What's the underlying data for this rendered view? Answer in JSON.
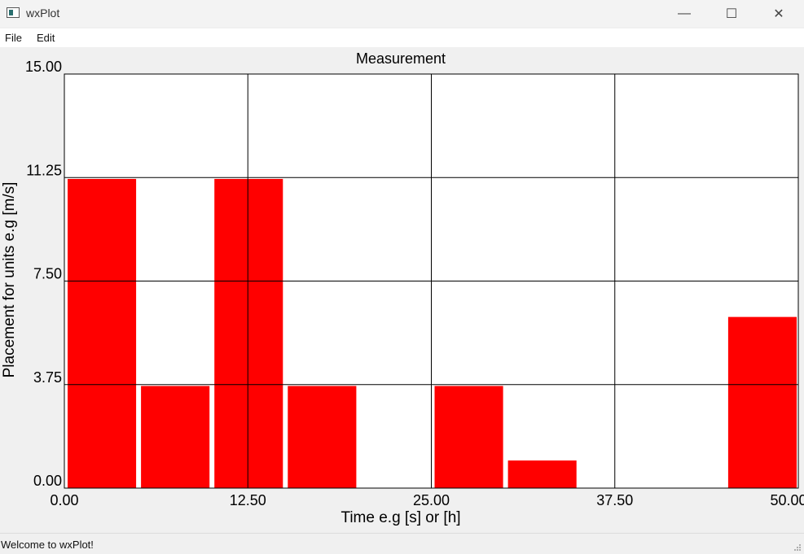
{
  "window": {
    "title": "wxPlot",
    "minimize_glyph": "—",
    "maximize_glyph": "☐",
    "close_glyph": "✕"
  },
  "menu": {
    "items": [
      {
        "label": "File"
      },
      {
        "label": "Edit"
      }
    ]
  },
  "status": {
    "text": "Welcome to wxPlot!"
  },
  "colors": {
    "bar": "#ff0000",
    "grid": "#000000"
  },
  "chart_data": {
    "type": "bar",
    "title": "Measurement",
    "xlabel": "Time e.g [s] or [h]",
    "ylabel": "Placement for units e.g [m/s]",
    "xlim": [
      0,
      50
    ],
    "ylim": [
      0,
      15
    ],
    "xticks": [
      "0.00",
      "12.50",
      "25.00",
      "37.50",
      "50.00"
    ],
    "yticks": [
      "0.00",
      "3.75",
      "7.50",
      "11.25",
      "15.00"
    ],
    "grid": true,
    "bar_width": 5,
    "bars": [
      {
        "x": 0,
        "value": 11.2
      },
      {
        "x": 5,
        "value": 3.7
      },
      {
        "x": 10,
        "value": 11.2
      },
      {
        "x": 15,
        "value": 3.7
      },
      {
        "x": 25,
        "value": 3.7
      },
      {
        "x": 30,
        "value": 1.0
      },
      {
        "x": 45,
        "value": 6.2
      }
    ]
  }
}
